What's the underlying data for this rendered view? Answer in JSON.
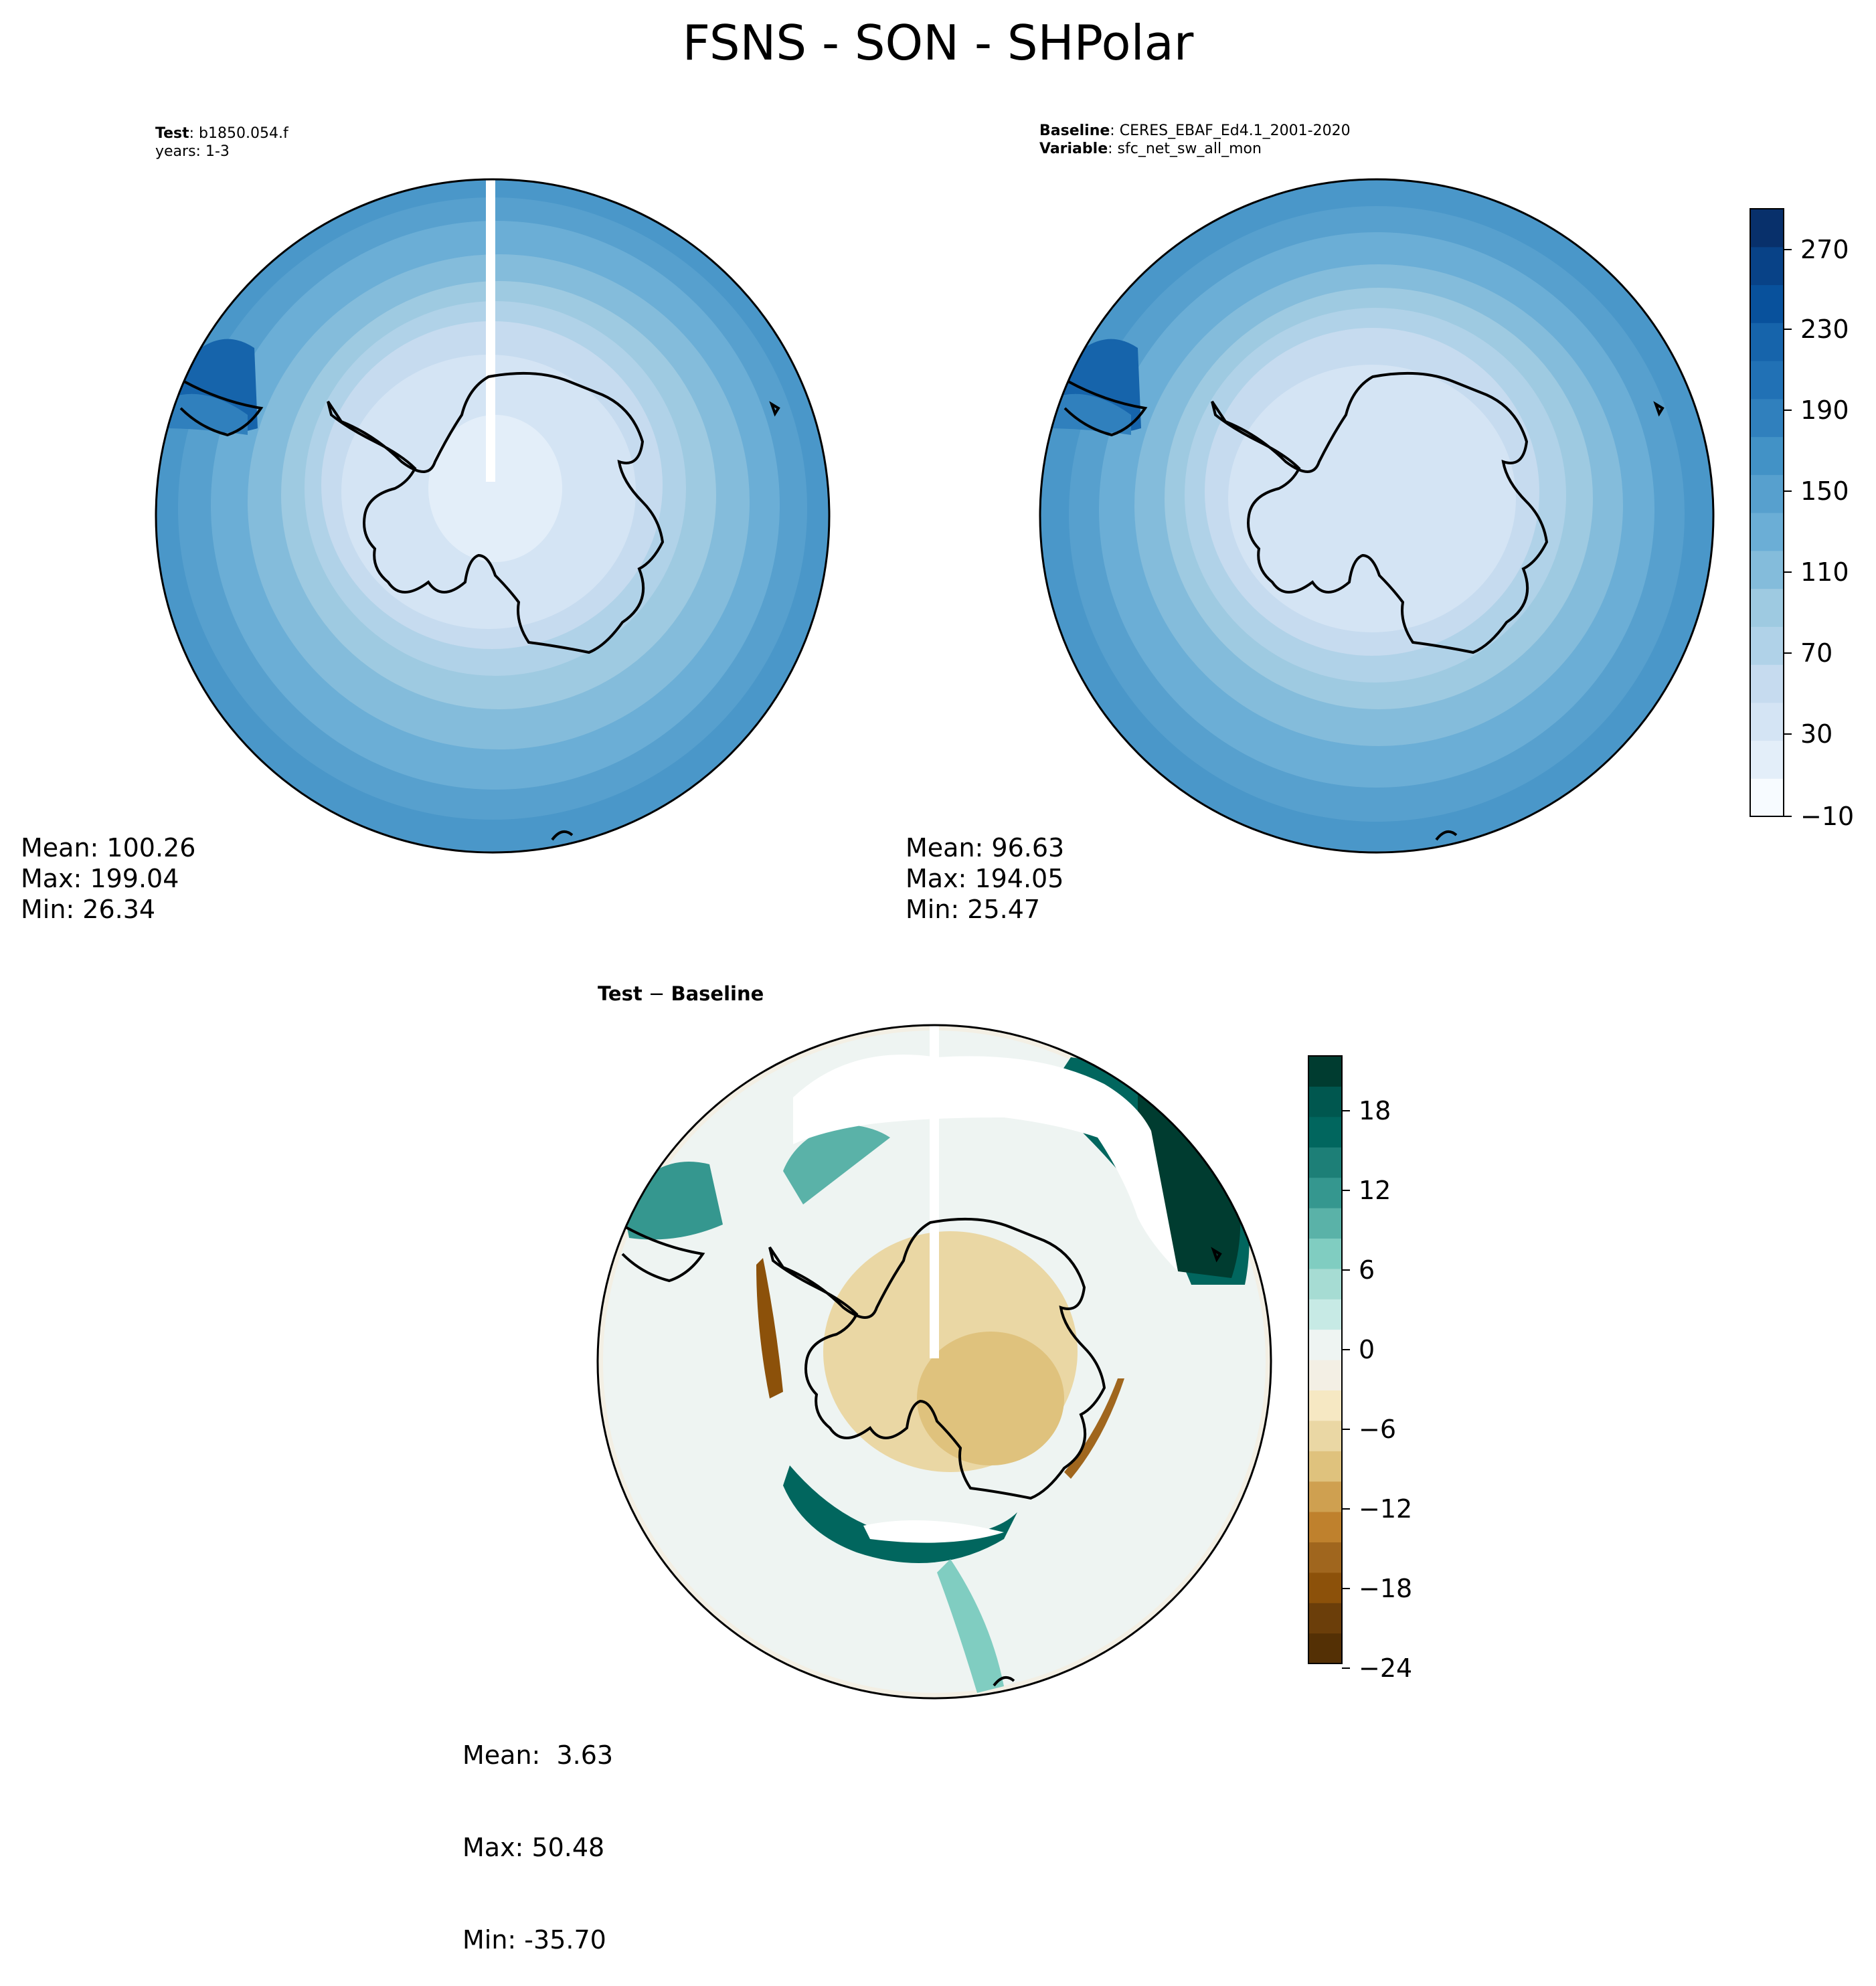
{
  "figure": {
    "title": "FSNS - SON - SHPolar"
  },
  "panels": {
    "test": {
      "label_key": "Test",
      "label_sep": ":",
      "label_value": "b1850.054.f",
      "years": "years: 1-3",
      "stats": {
        "mean": "Mean: 100.26",
        "max": "Max: 199.04",
        "min": "Min: 26.34"
      }
    },
    "baseline": {
      "label_key": "Baseline",
      "label_sep": ":",
      "label_value": "CERES_EBAF_Ed4.1_2001-2020",
      "var_key": "Variable",
      "var_value": "sfc_net_sw_all_mon",
      "stats": {
        "mean": "Mean: 96.63",
        "max": "Max: 194.05",
        "min": "Min: 25.47"
      }
    },
    "diff": {
      "title_key": "Test",
      "title_op": " − ",
      "title_value": "Baseline",
      "stats": {
        "mean": "Mean:  3.63",
        "max": "Max: 50.48",
        "min": "Min: -35.70"
      }
    }
  },
  "colorbars": {
    "main": {
      "ticks": [
        "270",
        "230",
        "190",
        "150",
        "110",
        "70",
        "30",
        "−10"
      ],
      "colors": [
        "#f7fbff",
        "#e3eef9",
        "#d4e4f4",
        "#c6dbef",
        "#b0d2e8",
        "#9ecae1",
        "#84bcdb",
        "#6baed6",
        "#57a0ce",
        "#4292c6",
        "#3080bd",
        "#2171b5",
        "#1664ab",
        "#08519c",
        "#084287",
        "#08306b"
      ]
    },
    "diff": {
      "ticks": [
        "18",
        "12",
        "6",
        "0",
        "−6",
        "−12",
        "−18",
        "−24"
      ],
      "colors": [
        "#543005",
        "#6b3e0a",
        "#8c510a",
        "#a0661e",
        "#bf812d",
        "#cfa050",
        "#dfc27d",
        "#ead7a4",
        "#f6e8c3",
        "#f3efe4",
        "#eef4f2",
        "#c7eae5",
        "#a6dcd3",
        "#80cdc1",
        "#5ab2a8",
        "#35978f",
        "#1d7f77",
        "#01665e",
        "#00574f",
        "#003c30"
      ]
    }
  },
  "map_colors": {
    "coast": "#000000",
    "outline": "#000000"
  }
}
